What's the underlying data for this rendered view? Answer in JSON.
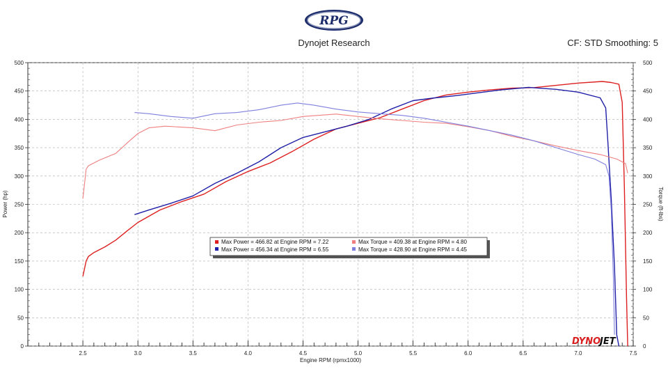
{
  "header": {
    "logo_text": "RPG",
    "company": "Dynojet Research",
    "cf_info": "CF: STD Smoothing: 5"
  },
  "watermark": {
    "text_a": "DYNO",
    "text_b": "JET"
  },
  "colors": {
    "power_run1": "#dd1f1f",
    "power_run2": "#1f1fa8",
    "torque_run1": "#ef7f7f",
    "torque_run2": "#7f7fdd"
  },
  "chart_data": {
    "type": "line",
    "xlabel": "Engine RPM (rpmx1000)",
    "ylabel": "Power (hp)",
    "y2label": "Torque (ft-lbs)",
    "xlim": [
      2.0,
      7.5
    ],
    "ylim": [
      0,
      500
    ],
    "y2lim": [
      0,
      500
    ],
    "x_ticks": [
      2.5,
      3.0,
      3.5,
      4.0,
      4.5,
      5.0,
      5.5,
      6.0,
      6.5,
      7.0,
      7.5
    ],
    "x_tick_labels": [
      "2.5",
      "3.0",
      "3.5",
      "4.0",
      "4.5",
      "5.0",
      "5.5",
      "6.0",
      "6.5",
      "7.0",
      "7.5"
    ],
    "y_ticks": [
      0,
      50,
      100,
      150,
      200,
      250,
      300,
      350,
      400,
      450,
      500
    ],
    "y_tick_labels": [
      "0",
      "50",
      "100",
      "150",
      "200",
      "250",
      "300",
      "350",
      "400",
      "450",
      "500"
    ],
    "grid": true,
    "legend_position": "center",
    "legend": [
      "Max Power = 466.82 at Engine RPM = 7.22",
      "Max Power = 456.34 at Engine RPM = 6.55",
      "Max Torque = 409.38 at Engine RPM = 4.80",
      "Max Torque = 428.90 at Engine RPM = 4.45"
    ],
    "series": [
      {
        "role": "power-run-1",
        "axis": "left",
        "x": [
          2.5,
          2.53,
          2.55,
          2.6,
          2.7,
          2.8,
          2.9,
          3.0,
          3.2,
          3.4,
          3.6,
          3.8,
          4.0,
          4.2,
          4.4,
          4.6,
          4.8,
          5.0,
          5.2,
          5.4,
          5.6,
          5.8,
          6.0,
          6.2,
          6.4,
          6.6,
          6.8,
          7.0,
          7.22,
          7.3,
          7.37,
          7.4,
          7.42,
          7.44,
          7.45
        ],
        "y": [
          123,
          150,
          158,
          165,
          175,
          187,
          203,
          218,
          240,
          255,
          268,
          290,
          308,
          323,
          343,
          365,
          383,
          393,
          403,
          418,
          433,
          443,
          448,
          452,
          455,
          456,
          460,
          464,
          466.82,
          465,
          462,
          430,
          280,
          80,
          0
        ]
      },
      {
        "role": "power-run-2",
        "axis": "left",
        "x": [
          2.97,
          3.1,
          3.3,
          3.5,
          3.7,
          3.9,
          4.1,
          4.3,
          4.5,
          4.7,
          4.9,
          5.1,
          5.3,
          5.5,
          5.7,
          5.9,
          6.1,
          6.3,
          6.55,
          6.8,
          7.0,
          7.2,
          7.25,
          7.27,
          7.3,
          7.33,
          7.35,
          7.37
        ],
        "y": [
          232,
          240,
          252,
          265,
          287,
          305,
          325,
          350,
          368,
          378,
          388,
          400,
          418,
          433,
          438,
          442,
          447,
          452,
          456.34,
          453,
          448,
          438,
          420,
          360,
          260,
          140,
          20,
          0
        ]
      },
      {
        "role": "torque-run-1",
        "axis": "right",
        "x": [
          2.5,
          2.53,
          2.55,
          2.65,
          2.8,
          2.9,
          3.0,
          3.1,
          3.25,
          3.5,
          3.7,
          3.9,
          4.1,
          4.3,
          4.5,
          4.8,
          5.0,
          5.2,
          5.4,
          5.6,
          5.8,
          6.0,
          6.2,
          6.4,
          6.6,
          6.8,
          7.0,
          7.2,
          7.35,
          7.43,
          7.45
        ],
        "y": [
          260,
          312,
          318,
          328,
          340,
          358,
          375,
          385,
          388,
          385,
          380,
          390,
          395,
          398,
          405,
          409.38,
          405,
          401,
          398,
          395,
          393,
          387,
          380,
          370,
          362,
          353,
          345,
          338,
          330,
          322,
          305
        ]
      },
      {
        "role": "torque-run-2",
        "axis": "right",
        "x": [
          2.97,
          3.1,
          3.3,
          3.5,
          3.7,
          3.9,
          4.1,
          4.3,
          4.45,
          4.6,
          4.8,
          5.0,
          5.2,
          5.4,
          5.6,
          5.8,
          6.0,
          6.2,
          6.4,
          6.6,
          6.8,
          7.0,
          7.15,
          7.25,
          7.28,
          7.3,
          7.32,
          7.33
        ],
        "y": [
          412,
          410,
          405,
          402,
          410,
          412,
          417,
          425,
          428.9,
          425,
          418,
          413,
          410,
          407,
          402,
          395,
          388,
          380,
          372,
          362,
          350,
          338,
          330,
          320,
          300,
          240,
          120,
          20
        ]
      }
    ]
  }
}
